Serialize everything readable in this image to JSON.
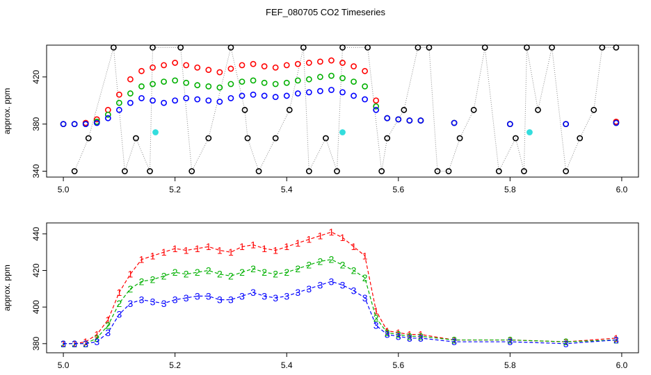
{
  "title": "FEF_080705  CO2 Timeseries",
  "colors": {
    "red": "#ff0000",
    "green": "#00b000",
    "blue": "#0000ff",
    "black": "#000000",
    "cyan": "#33dddd",
    "gray": "#888888"
  },
  "chart_data": [
    {
      "type": "scatter",
      "ylabel": "approx. ppm",
      "xlim": [
        4.97,
        6.03
      ],
      "ylim": [
        335,
        447
      ],
      "xticks": [
        "5.0",
        "5.2",
        "5.4",
        "5.6",
        "5.8",
        "6.0"
      ],
      "yticks": [
        "340",
        "380",
        "420"
      ],
      "ytick_values": [
        340,
        380,
        420
      ],
      "series": [
        {
          "name": "red",
          "color": "#ff0000",
          "x": [
            5.0,
            5.02,
            5.04,
            5.06,
            5.08,
            5.1,
            5.12,
            5.14,
            5.16,
            5.18,
            5.2,
            5.22,
            5.24,
            5.26,
            5.28,
            5.3,
            5.32,
            5.34,
            5.36,
            5.38,
            5.4,
            5.42,
            5.44,
            5.46,
            5.48,
            5.5,
            5.52,
            5.54,
            5.56,
            5.58,
            5.6,
            5.62,
            5.64,
            5.7,
            5.8,
            5.9,
            5.99
          ],
          "values": [
            380,
            380,
            381,
            384,
            392,
            405,
            418,
            425,
            428,
            430,
            432,
            430,
            428,
            426,
            424,
            427,
            430,
            431,
            429,
            428,
            430,
            431,
            432,
            433,
            434,
            432,
            429,
            425,
            400,
            385,
            384,
            383,
            383,
            381,
            380,
            380,
            382
          ]
        },
        {
          "name": "green",
          "color": "#00b000",
          "x": [
            5.0,
            5.02,
            5.04,
            5.06,
            5.08,
            5.1,
            5.12,
            5.14,
            5.16,
            5.18,
            5.2,
            5.22,
            5.24,
            5.26,
            5.28,
            5.3,
            5.32,
            5.34,
            5.36,
            5.38,
            5.4,
            5.42,
            5.44,
            5.46,
            5.48,
            5.5,
            5.52,
            5.54,
            5.56,
            5.58,
            5.6,
            5.62,
            5.64,
            5.7,
            5.8,
            5.9,
            5.99
          ],
          "values": [
            380,
            380,
            380,
            382,
            388,
            398,
            406,
            412,
            414,
            416,
            417,
            415,
            413,
            412,
            411,
            414,
            416,
            417,
            415,
            414,
            415,
            417,
            418,
            420,
            421,
            419,
            416,
            412,
            395,
            385,
            384,
            383,
            383,
            381,
            380,
            380,
            381
          ]
        },
        {
          "name": "blue",
          "color": "#0000ff",
          "x": [
            5.0,
            5.02,
            5.04,
            5.06,
            5.08,
            5.1,
            5.12,
            5.14,
            5.16,
            5.18,
            5.2,
            5.22,
            5.24,
            5.26,
            5.28,
            5.3,
            5.32,
            5.34,
            5.36,
            5.38,
            5.4,
            5.42,
            5.44,
            5.46,
            5.48,
            5.5,
            5.52,
            5.54,
            5.56,
            5.58,
            5.6,
            5.62,
            5.64,
            5.7,
            5.8,
            5.9,
            5.99
          ],
          "values": [
            380,
            380,
            380,
            381,
            385,
            392,
            398,
            402,
            400,
            398,
            400,
            402,
            401,
            400,
            399,
            402,
            404,
            405,
            404,
            403,
            404,
            406,
            407,
            408,
            409,
            407,
            404,
            401,
            392,
            385,
            384,
            383,
            383,
            381,
            380,
            380,
            381
          ]
        },
        {
          "name": "black",
          "color": "#000000",
          "x": [
            5.02,
            5.045,
            5.09,
            5.11,
            5.13,
            5.155,
            5.16,
            5.21,
            5.23,
            5.26,
            5.3,
            5.325,
            5.33,
            5.35,
            5.38,
            5.405,
            5.43,
            5.44,
            5.47,
            5.49,
            5.5,
            5.545,
            5.57,
            5.58,
            5.61,
            5.635,
            5.655,
            5.67,
            5.69,
            5.71,
            5.735,
            5.755,
            5.78,
            5.81,
            5.825,
            5.83,
            5.85,
            5.875,
            5.9,
            5.925,
            5.95,
            5.965,
            5.99
          ],
          "values": [
            340,
            368,
            445,
            340,
            368,
            340,
            445,
            445,
            340,
            368,
            445,
            392,
            368,
            340,
            368,
            392,
            445,
            340,
            368,
            340,
            445,
            445,
            340,
            368,
            392,
            445,
            445,
            340,
            340,
            368,
            392,
            445,
            340,
            368,
            340,
            445,
            392,
            445,
            340,
            368,
            392,
            445,
            445
          ]
        },
        {
          "name": "cyan",
          "color": "#33dddd",
          "x": [
            5.165,
            5.5,
            5.835
          ],
          "values": [
            373,
            373,
            373
          ]
        }
      ]
    },
    {
      "type": "line",
      "ylabel": "approx. ppm",
      "xlim": [
        4.97,
        6.03
      ],
      "ylim": [
        375,
        446
      ],
      "xticks": [
        "5.0",
        "5.2",
        "5.4",
        "5.6",
        "5.8",
        "6.0"
      ],
      "yticks": [
        "380",
        "400",
        "420",
        "440"
      ],
      "ytick_values": [
        380,
        400,
        420,
        440
      ],
      "series": [
        {
          "name": "1",
          "color": "#ff0000",
          "x": [
            5.0,
            5.02,
            5.04,
            5.06,
            5.08,
            5.1,
            5.12,
            5.14,
            5.16,
            5.18,
            5.2,
            5.22,
            5.24,
            5.26,
            5.28,
            5.3,
            5.32,
            5.34,
            5.36,
            5.38,
            5.4,
            5.42,
            5.44,
            5.46,
            5.48,
            5.5,
            5.52,
            5.54,
            5.56,
            5.58,
            5.6,
            5.62,
            5.64,
            5.7,
            5.8,
            5.9,
            5.99
          ],
          "values": [
            380,
            380,
            381,
            385,
            393,
            408,
            418,
            426,
            428,
            430,
            432,
            431,
            432,
            433,
            431,
            430,
            433,
            434,
            432,
            431,
            433,
            435,
            437,
            439,
            441,
            438,
            433,
            428,
            398,
            387,
            386,
            385,
            385,
            382,
            382,
            381,
            383
          ]
        },
        {
          "name": "2",
          "color": "#00b000",
          "x": [
            5.0,
            5.02,
            5.04,
            5.06,
            5.08,
            5.1,
            5.12,
            5.14,
            5.16,
            5.18,
            5.2,
            5.22,
            5.24,
            5.26,
            5.28,
            5.3,
            5.32,
            5.34,
            5.36,
            5.38,
            5.4,
            5.42,
            5.44,
            5.46,
            5.48,
            5.5,
            5.52,
            5.54,
            5.56,
            5.58,
            5.6,
            5.62,
            5.64,
            5.7,
            5.8,
            5.9,
            5.99
          ],
          "values": [
            380,
            380,
            380,
            383,
            390,
            402,
            410,
            414,
            415,
            417,
            419,
            418,
            419,
            420,
            418,
            417,
            419,
            421,
            419,
            418,
            419,
            421,
            423,
            425,
            426,
            423,
            420,
            416,
            394,
            386,
            385,
            384,
            384,
            382,
            382,
            381,
            382
          ]
        },
        {
          "name": "3",
          "color": "#0000ff",
          "x": [
            5.0,
            5.02,
            5.04,
            5.06,
            5.08,
            5.1,
            5.12,
            5.14,
            5.16,
            5.18,
            5.2,
            5.22,
            5.24,
            5.26,
            5.28,
            5.3,
            5.32,
            5.34,
            5.36,
            5.38,
            5.4,
            5.42,
            5.44,
            5.46,
            5.48,
            5.5,
            5.52,
            5.54,
            5.56,
            5.58,
            5.6,
            5.62,
            5.64,
            5.7,
            5.8,
            5.9,
            5.99
          ],
          "values": [
            380,
            380,
            380,
            381,
            386,
            396,
            402,
            404,
            403,
            402,
            404,
            405,
            406,
            406,
            404,
            404,
            406,
            408,
            406,
            405,
            406,
            408,
            410,
            412,
            414,
            412,
            409,
            405,
            390,
            385,
            384,
            383,
            383,
            381,
            381,
            380,
            382
          ]
        }
      ]
    }
  ]
}
